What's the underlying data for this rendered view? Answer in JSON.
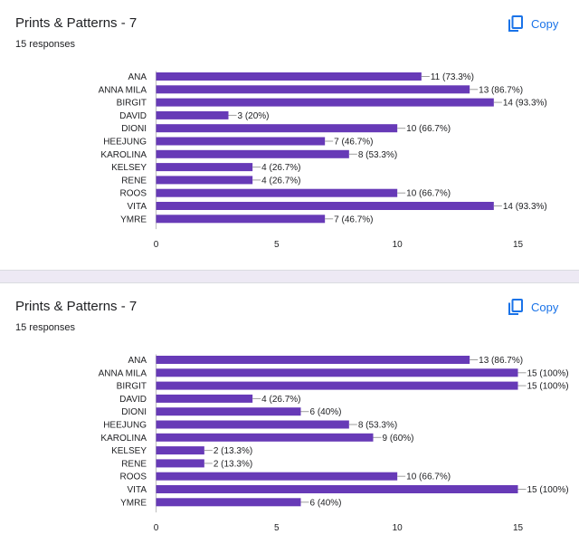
{
  "colors": {
    "bar": "#673ab7",
    "accent": "#1a73e8",
    "axis": "#bdbdbd"
  },
  "cards": [
    {
      "title": "Prints & Patterns - 7",
      "responses": "15 responses",
      "copy_label": "Copy",
      "copy_icon": "copy-icon",
      "chart_data": {
        "type": "bar",
        "orientation": "horizontal",
        "categories": [
          "ANA",
          "ANNA MILA",
          "BIRGIT",
          "DAVID",
          "DIONI",
          "HEEJUNG",
          "KAROLINA",
          "KELSEY",
          "RENE",
          "ROOS",
          "VITA",
          "YMRE"
        ],
        "values": [
          11,
          13,
          14,
          3,
          10,
          7,
          8,
          4,
          4,
          10,
          14,
          7
        ],
        "labels": [
          "11 (73.3%)",
          "13 (86.7%)",
          "14 (93.3%)",
          "3 (20%)",
          "10 (66.7%)",
          "7 (46.7%)",
          "8 (53.3%)",
          "4 (26.7%)",
          "4 (26.7%)",
          "10 (66.7%)",
          "14 (93.3%)",
          "7 (46.7%)"
        ],
        "xticks": [
          0,
          5,
          10,
          15
        ],
        "xlim": [
          0,
          15
        ]
      }
    },
    {
      "title": "Prints & Patterns - 7",
      "responses": "15 responses",
      "copy_label": "Copy",
      "copy_icon": "copy-icon",
      "chart_data": {
        "type": "bar",
        "orientation": "horizontal",
        "categories": [
          "ANA",
          "ANNA MILA",
          "BIRGIT",
          "DAVID",
          "DIONI",
          "HEEJUNG",
          "KAROLINA",
          "KELSEY",
          "RENE",
          "ROOS",
          "VITA",
          "YMRE"
        ],
        "values": [
          13,
          15,
          15,
          4,
          6,
          8,
          9,
          2,
          2,
          10,
          15,
          6
        ],
        "labels": [
          "13 (86.7%)",
          "15 (100%)",
          "15 (100%)",
          "4 (26.7%)",
          "6 (40%)",
          "8 (53.3%)",
          "9 (60%)",
          "2 (13.3%)",
          "2 (13.3%)",
          "10 (66.7%)",
          "15 (100%)",
          "6 (40%)"
        ],
        "xticks": [
          0,
          5,
          10,
          15
        ],
        "xlim": [
          0,
          15
        ]
      }
    }
  ]
}
